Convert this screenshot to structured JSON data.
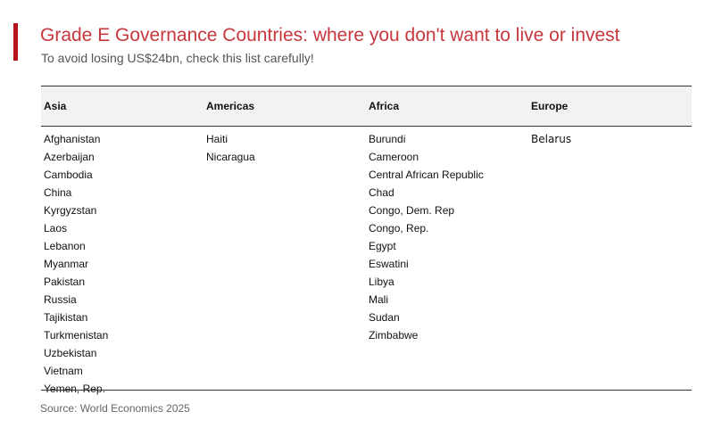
{
  "header": {
    "title": "Grade E Governance Countries: where you don't want to live or invest",
    "subtitle": "To avoid losing US$24bn, check this list carefully!",
    "accent_color": "#b5121b",
    "title_color": "#c8373e"
  },
  "table": {
    "columns": [
      "Asia",
      "Americas",
      "Africa",
      "Europe"
    ],
    "rows_by_column": {
      "asia": [
        "Afghanistan",
        "Azerbaijan",
        "Cambodia",
        "China",
        "Kyrgyzstan",
        "Laos",
        "Lebanon",
        "Myanmar",
        "Pakistan",
        "Russia",
        "Tajikistan",
        "Turkmenistan",
        "Uzbekistan",
        "Vietnam",
        "Yemen, Rep."
      ],
      "americas": [
        "Haiti",
        "Nicaragua"
      ],
      "africa": [
        "Burundi",
        "Cameroon",
        "Central African Republic",
        "Chad",
        "Congo, Dem. Rep",
        "Congo, Rep.",
        "Egypt",
        "Eswatini",
        "Libya",
        "Mali",
        "Sudan",
        "Zimbabwe"
      ],
      "europe": [
        "Belarus"
      ]
    }
  },
  "footer": {
    "source": "Source: World Economics 2025"
  }
}
